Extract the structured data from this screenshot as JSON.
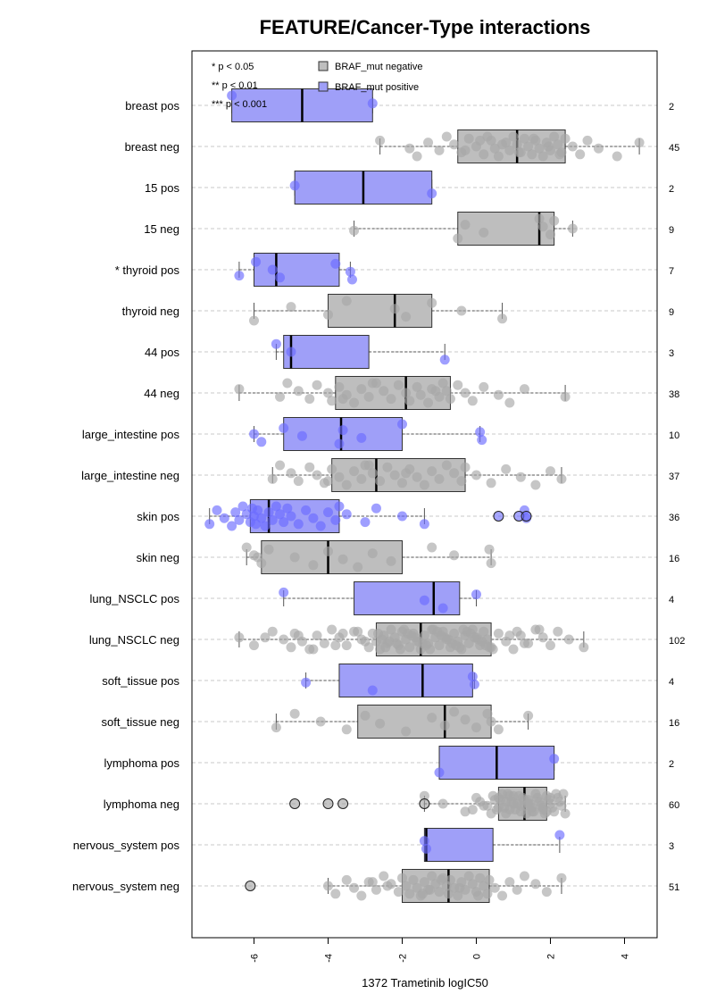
{
  "chart_data": {
    "type": "boxplot",
    "title": "FEATURE/Cancer-Type interactions",
    "xlabel": "1372 Trametinib logIC50",
    "ylabel": "",
    "xlim": [
      -7.5,
      4.9
    ],
    "xticks": [
      -6,
      -4,
      -2,
      0,
      2,
      4
    ],
    "xtick_labels": [
      "-6",
      "-4",
      "-2",
      "0",
      "2",
      "4"
    ],
    "grid": "horizontal-dashed",
    "legend": {
      "position": "top-left",
      "significance": [
        "* p < 0.05",
        "** p < 0.01",
        "*** p < 0.001"
      ],
      "items": [
        {
          "label": "BRAF_mut negative",
          "color": "#bebebe"
        },
        {
          "label": "BRAF_mut positive",
          "color": "#9f9ff8"
        }
      ]
    },
    "colors": {
      "neg_box": "#bebebe",
      "pos_box": "#9f9ff8",
      "neg_point": "#a8a8a8",
      "pos_point": "#6b6bff"
    },
    "groups": [
      {
        "label": "breast pos",
        "status": "pos",
        "n": "2",
        "min": -6.6,
        "q1": -6.6,
        "median": -4.7,
        "q3": -2.8,
        "max": -2.8,
        "points": [
          -6.6,
          -2.8
        ],
        "outliers": []
      },
      {
        "label": "breast neg",
        "status": "neg",
        "n": "45",
        "min": -2.6,
        "q1": -0.5,
        "median": 1.1,
        "q3": 2.4,
        "max": 4.4,
        "points": [
          -2.6,
          -1.8,
          -1.6,
          -1.3,
          -1.0,
          -0.8,
          -0.6,
          -0.4,
          -0.2,
          0.0,
          0.2,
          0.4,
          0.5,
          0.6,
          0.8,
          0.9,
          1.0,
          1.1,
          1.2,
          1.3,
          1.4,
          1.5,
          1.6,
          1.7,
          1.8,
          1.9,
          2.0,
          2.1,
          2.2,
          2.3,
          2.4,
          2.6,
          2.8,
          3.0,
          3.3,
          3.8,
          4.4,
          -0.3,
          0.3,
          0.7,
          1.15,
          1.55,
          1.95,
          2.25,
          0.1
        ],
        "outliers": []
      },
      {
        "label": "15 pos",
        "status": "pos",
        "n": "2",
        "min": -4.9,
        "q1": -4.9,
        "median": -3.05,
        "q3": -1.2,
        "max": -1.2,
        "points": [
          -4.9,
          -1.2
        ],
        "outliers": []
      },
      {
        "label": "15 neg",
        "status": "neg",
        "n": "9",
        "min": -3.3,
        "q1": -0.5,
        "median": 1.7,
        "q3": 2.1,
        "max": 2.6,
        "points": [
          -3.3,
          -0.5,
          -0.3,
          0.2,
          1.7,
          1.8,
          2.0,
          2.1,
          2.6
        ],
        "outliers": []
      },
      {
        "label": "* thyroid pos",
        "status": "pos",
        "n": "7",
        "min": -6.4,
        "q1": -6.0,
        "median": -5.4,
        "q3": -3.7,
        "max": -3.4,
        "points": [
          -6.4,
          -5.95,
          -5.5,
          -5.3,
          -3.8,
          -3.4,
          -3.35
        ],
        "outliers": []
      },
      {
        "label": "thyroid neg",
        "status": "neg",
        "n": "9",
        "min": -6.0,
        "q1": -4.0,
        "median": -2.2,
        "q3": -1.2,
        "max": 0.7,
        "points": [
          -6.0,
          -5.0,
          -4.0,
          -3.5,
          -2.2,
          -1.9,
          -1.2,
          -0.4,
          0.7
        ],
        "outliers": []
      },
      {
        "label": "44 pos",
        "status": "pos",
        "n": "3",
        "min": -5.4,
        "q1": -5.2,
        "median": -5.0,
        "q3": -2.9,
        "max": -0.85,
        "points": [
          -5.4,
          -5.0,
          -0.85
        ],
        "outliers": []
      },
      {
        "label": "44 neg",
        "status": "neg",
        "n": "38",
        "min": -6.4,
        "q1": -3.8,
        "median": -1.9,
        "q3": -0.7,
        "max": 2.4,
        "points": [
          -6.4,
          -5.3,
          -5.1,
          -4.8,
          -4.5,
          -4.3,
          -4.0,
          -3.9,
          -3.7,
          -3.5,
          -3.3,
          -3.1,
          -2.9,
          -2.7,
          -2.5,
          -2.3,
          -2.1,
          -1.9,
          -1.8,
          -1.6,
          -1.5,
          -1.3,
          -1.2,
          -1.0,
          -0.9,
          -0.8,
          -0.7,
          -0.5,
          -0.3,
          -0.1,
          0.2,
          0.6,
          0.9,
          1.3,
          2.4,
          -2.8,
          -1.1,
          -3.6
        ],
        "outliers": []
      },
      {
        "label": "large_intestine pos",
        "status": "pos",
        "n": "10",
        "min": -6.0,
        "q1": -5.2,
        "median": -3.65,
        "q3": -2.0,
        "max": 0.1,
        "points": [
          -6.0,
          -5.8,
          -5.2,
          -4.7,
          -3.7,
          -3.6,
          -3.1,
          -2.0,
          0.1,
          0.15
        ],
        "outliers": []
      },
      {
        "label": "large_intestine neg",
        "status": "neg",
        "n": "37",
        "min": -5.5,
        "q1": -3.9,
        "median": -2.7,
        "q3": -0.3,
        "max": 2.3,
        "points": [
          -5.5,
          -5.3,
          -5.0,
          -4.8,
          -4.5,
          -4.3,
          -4.1,
          -3.9,
          -3.7,
          -3.5,
          -3.3,
          -3.1,
          -2.9,
          -2.8,
          -2.6,
          -2.4,
          -2.2,
          -2.0,
          -1.8,
          -1.6,
          -1.4,
          -1.2,
          -1.0,
          -0.8,
          -0.6,
          -0.4,
          -0.3,
          0.0,
          0.4,
          0.8,
          1.2,
          1.6,
          2.0,
          2.3,
          -3.0,
          -1.9,
          -4.0
        ],
        "outliers": []
      },
      {
        "label": "skin pos",
        "status": "pos",
        "n": "36",
        "min": -7.2,
        "q1": -6.1,
        "median": -5.6,
        "q3": -3.7,
        "max": -1.4,
        "points": [
          -7.2,
          -7.0,
          -6.8,
          -6.6,
          -6.5,
          -6.4,
          -6.3,
          -6.2,
          -6.1,
          -6.05,
          -6.0,
          -5.95,
          -5.9,
          -5.8,
          -5.7,
          -5.6,
          -5.5,
          -5.4,
          -5.3,
          -5.2,
          -5.1,
          -5.0,
          -4.8,
          -4.6,
          -4.4,
          -4.2,
          -4.0,
          -3.8,
          -3.7,
          -3.5,
          -3.0,
          -2.7,
          -2.0,
          -1.4,
          1.3,
          1.35
        ],
        "outliers": [
          0.6,
          1.15,
          1.35
        ]
      },
      {
        "label": "skin neg",
        "status": "neg",
        "n": "16",
        "min": -6.2,
        "q1": -5.8,
        "median": -4.0,
        "q3": -2.0,
        "max": 0.4,
        "points": [
          -6.2,
          -6.0,
          -5.8,
          -5.6,
          -4.9,
          -4.4,
          -4.0,
          -3.6,
          -3.2,
          -2.8,
          -2.3,
          -1.2,
          -0.6,
          0.4,
          0.35,
          -5.9
        ],
        "outliers": []
      },
      {
        "label": "lung_NSCLC pos",
        "status": "pos",
        "n": "4",
        "min": -5.2,
        "q1": -3.3,
        "median": -1.15,
        "q3": -0.45,
        "max": 0.0,
        "points": [
          -5.2,
          -1.4,
          -0.9,
          0.0
        ],
        "outliers": []
      },
      {
        "label": "lung_NSCLC neg",
        "status": "neg",
        "n": "102",
        "min": -6.4,
        "q1": -2.7,
        "median": -1.5,
        "q3": 0.4,
        "max": 2.9,
        "points": [
          -6.4,
          -6.0,
          -5.5,
          -5.2,
          -5.0,
          -4.9,
          -4.7,
          -4.5,
          -4.3,
          -4.1,
          -3.9,
          -3.7,
          -3.5,
          -3.3,
          -3.1,
          -2.9,
          -2.8,
          -2.7,
          -2.6,
          -2.5,
          -2.4,
          -2.3,
          -2.2,
          -2.1,
          -2.0,
          -1.9,
          -1.8,
          -1.7,
          -1.6,
          -1.5,
          -1.4,
          -1.3,
          -1.2,
          -1.1,
          -1.0,
          -0.9,
          -0.8,
          -0.7,
          -0.6,
          -0.5,
          -0.4,
          -0.3,
          -0.2,
          -0.1,
          0.0,
          0.1,
          0.2,
          0.3,
          0.4,
          0.6,
          0.8,
          1.0,
          1.2,
          1.4,
          1.6,
          1.8,
          2.0,
          2.2,
          2.5,
          2.9,
          -2.65,
          -2.35,
          -2.05,
          -1.75,
          -1.45,
          -1.15,
          -0.85,
          -0.55,
          -0.25,
          0.05,
          0.35,
          -3.6,
          -3.0,
          -4.4,
          -4.8,
          -2.15,
          -1.95,
          -1.65,
          -1.35,
          -1.05,
          -0.75,
          -0.45,
          -0.15,
          0.15,
          0.45,
          0.9,
          1.3,
          1.7,
          -5.7,
          -3.8,
          -3.2,
          -2.55,
          -2.45,
          -1.85,
          -1.55,
          -1.25,
          -0.95,
          -0.65,
          -0.35,
          -0.05,
          0.25,
          1.1
        ],
        "outliers": []
      },
      {
        "label": "soft_tissue pos",
        "status": "pos",
        "n": "4",
        "min": -4.6,
        "q1": -3.7,
        "median": -1.45,
        "q3": -0.1,
        "max": -0.05,
        "points": [
          -4.6,
          -2.8,
          -0.1,
          -0.05
        ],
        "outliers": []
      },
      {
        "label": "soft_tissue neg",
        "status": "neg",
        "n": "16",
        "min": -5.4,
        "q1": -3.2,
        "median": -0.85,
        "q3": 0.4,
        "max": 1.4,
        "points": [
          -5.4,
          -4.9,
          -4.2,
          -3.5,
          -3.0,
          -2.6,
          -1.9,
          -1.2,
          -0.85,
          -0.6,
          -0.3,
          0.0,
          0.3,
          0.4,
          0.6,
          1.4
        ],
        "outliers": []
      },
      {
        "label": "lymphoma pos",
        "status": "pos",
        "n": "2",
        "min": -1.0,
        "q1": -1.0,
        "median": 0.55,
        "q3": 2.1,
        "max": 2.1,
        "points": [
          -1.0,
          2.1
        ],
        "outliers": []
      },
      {
        "label": "lymphoma neg",
        "status": "neg",
        "n": "60",
        "min": -1.4,
        "q1": 0.6,
        "median": 1.3,
        "q3": 1.9,
        "max": 2.4,
        "points": [
          -1.4,
          -0.9,
          -0.3,
          0.0,
          0.2,
          0.4,
          0.5,
          0.6,
          0.7,
          0.8,
          0.9,
          1.0,
          1.1,
          1.2,
          1.25,
          1.3,
          1.35,
          1.4,
          1.5,
          1.6,
          1.7,
          1.8,
          1.9,
          2.0,
          2.1,
          2.2,
          2.3,
          2.4,
          0.65,
          0.75,
          0.85,
          0.95,
          1.05,
          1.15,
          1.45,
          1.55,
          1.65,
          1.75,
          1.85,
          1.95,
          2.05,
          2.15,
          2.25,
          0.55,
          0.45,
          1.0,
          1.5,
          2.0,
          0.3,
          0.8,
          1.3,
          1.8,
          2.35,
          0.1,
          -0.1,
          0.9,
          1.4,
          1.9,
          0.6,
          1.2
        ],
        "outliers": [
          -4.9,
          -4.0,
          -3.6,
          -1.4
        ]
      },
      {
        "label": "nervous_system pos",
        "status": "pos",
        "n": "3",
        "min": -1.4,
        "q1": -1.4,
        "median": -1.35,
        "q3": 0.45,
        "max": 2.25,
        "points": [
          -1.4,
          -1.35,
          2.25
        ],
        "outliers": []
      },
      {
        "label": "nervous_system neg",
        "status": "neg",
        "n": "51",
        "min": -4.0,
        "q1": -2.0,
        "median": -0.75,
        "q3": 0.35,
        "max": 2.3,
        "points": [
          -4.0,
          -3.8,
          -3.5,
          -3.3,
          -3.1,
          -2.9,
          -2.7,
          -2.5,
          -2.3,
          -2.1,
          -2.0,
          -1.9,
          -1.8,
          -1.7,
          -1.6,
          -1.5,
          -1.4,
          -1.3,
          -1.2,
          -1.1,
          -1.0,
          -0.9,
          -0.8,
          -0.75,
          -0.7,
          -0.6,
          -0.5,
          -0.4,
          -0.3,
          -0.2,
          -0.1,
          0.0,
          0.1,
          0.2,
          0.3,
          0.35,
          0.5,
          0.7,
          0.9,
          1.1,
          1.3,
          1.6,
          1.9,
          2.3,
          -2.4,
          -1.45,
          -0.95,
          -0.45,
          0.05,
          -2.8,
          -1.25
        ],
        "outliers": [
          -6.1
        ]
      }
    ]
  }
}
